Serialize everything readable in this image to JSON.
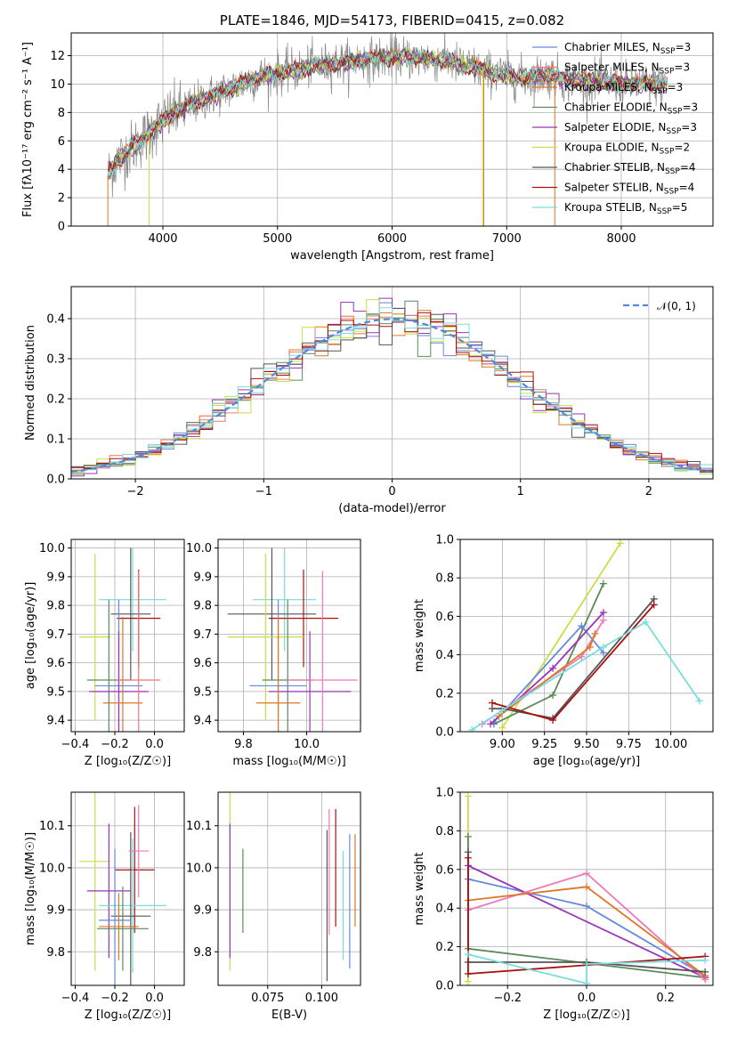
{
  "colors": {
    "chabrier_miles": "#6688dd",
    "salpeter_miles": "#ee7777",
    "kroupa_miles": "#dd7722",
    "chabrier_elodie": "#5a8a5a",
    "salpeter_elodie": "#9933bb",
    "kroupa_elodie": "#ccdd44",
    "chabrier_stelib": "#555555",
    "salpeter_stelib": "#aa1111",
    "kroupa_stelib": "#77dddd",
    "pink": "#ee77bb",
    "gauss": "#5588dd"
  },
  "chart_data": [
    {
      "id": "spectrum",
      "type": "line",
      "title": "PLATE=1846, MJD=54173, FIBERID=0415, z=0.082",
      "xlabel": "wavelength [Angstrom, rest frame]",
      "ylabel": "Flux [fλ10⁻¹⁷ erg cm⁻² s⁻¹ A⁻¹]",
      "xlim": [
        3200,
        8800
      ],
      "ylim": [
        0,
        13.6
      ],
      "xticks": [
        "4000",
        "5000",
        "6000",
        "7000",
        "8000"
      ],
      "yticks": [
        "0",
        "2",
        "4",
        "6",
        "8",
        "10",
        "12"
      ],
      "legend_position": "top-right",
      "legend": [
        {
          "label": "Chabrier MILES, N",
          "sub": "SSP",
          "tail": "=3",
          "color": "chabrier_miles"
        },
        {
          "label": "Salpeter MILES, N",
          "sub": "SSP",
          "tail": "=3",
          "color": "salpeter_miles"
        },
        {
          "label": "Kroupa MILES, N",
          "sub": "SSP",
          "tail": "=3",
          "color": "kroupa_miles"
        },
        {
          "label": "Chabrier ELODIE, N",
          "sub": "SSP",
          "tail": "=3",
          "color": "chabrier_elodie"
        },
        {
          "label": "Salpeter ELODIE, N",
          "sub": "SSP",
          "tail": "=3",
          "color": "salpeter_elodie"
        },
        {
          "label": "Kroupa ELODIE, N",
          "sub": "SSP",
          "tail": "=2",
          "color": "kroupa_elodie"
        },
        {
          "label": "Chabrier STELIB, N",
          "sub": "SSP",
          "tail": "=4",
          "color": "chabrier_stelib"
        },
        {
          "label": "Salpeter STELIB, N",
          "sub": "SSP",
          "tail": "=4",
          "color": "salpeter_stelib"
        },
        {
          "label": "Kroupa STELIB, N",
          "sub": "SSP",
          "tail": "=5",
          "color": "kroupa_stelib"
        }
      ],
      "continuum": [
        [
          3520,
          3.6
        ],
        [
          3600,
          4.6
        ],
        [
          3700,
          5.3
        ],
        [
          3800,
          6.0
        ],
        [
          3900,
          6.7
        ],
        [
          4000,
          7.4
        ],
        [
          4100,
          8.0
        ],
        [
          4200,
          8.3
        ],
        [
          4300,
          8.7
        ],
        [
          4400,
          9.1
        ],
        [
          4500,
          9.4
        ],
        [
          4600,
          9.7
        ],
        [
          4700,
          10.1
        ],
        [
          4800,
          10.4
        ],
        [
          4900,
          10.6
        ],
        [
          5000,
          10.8
        ],
        [
          5100,
          10.9
        ],
        [
          5200,
          11.0
        ],
        [
          5300,
          11.3
        ],
        [
          5400,
          11.3
        ],
        [
          5500,
          11.5
        ],
        [
          5600,
          11.5
        ],
        [
          5700,
          11.7
        ],
        [
          5800,
          11.7
        ],
        [
          5900,
          11.8
        ],
        [
          6000,
          11.9
        ],
        [
          6100,
          11.9
        ],
        [
          6200,
          11.8
        ],
        [
          6300,
          11.8
        ],
        [
          6400,
          11.7
        ],
        [
          6500,
          11.6
        ],
        [
          6600,
          11.3
        ],
        [
          6700,
          11.2
        ],
        [
          6800,
          10.9
        ],
        [
          6900,
          10.8
        ],
        [
          7000,
          10.6
        ],
        [
          7100,
          10.5
        ],
        [
          7200,
          10.4
        ],
        [
          7300,
          10.6
        ],
        [
          7400,
          10.6
        ],
        [
          7500,
          10.3
        ],
        [
          7700,
          10.2
        ],
        [
          7900,
          10.1
        ],
        [
          8100,
          10.0
        ],
        [
          8300,
          10.0
        ]
      ]
    },
    {
      "id": "residuals",
      "type": "line",
      "xlabel": "(data-model)/error",
      "ylabel": "Normed distribution",
      "xlim": [
        -2.5,
        2.5
      ],
      "ylim": [
        0,
        0.48
      ],
      "xticks": [
        "−2",
        "−1",
        "0",
        "1",
        "2"
      ],
      "yticks": [
        "0.0",
        "0.1",
        "0.2",
        "0.3",
        "0.4"
      ],
      "legend_position": "top-right",
      "legend_label": "𝒩(0, 1)",
      "bin_width": 0.1
    },
    {
      "id": "age_vs_Z",
      "type": "scatter",
      "xlabel": "Z [log₁₀(Z/Z☉)]",
      "ylabel": "age  [log₁₀(age/yr)]",
      "xlim": [
        -0.42,
        0.15
      ],
      "ylim": [
        9.36,
        10.03
      ],
      "xticks": [
        "−0.4",
        "−0.2",
        "0.0"
      ],
      "yticks": [
        "9.4",
        "9.5",
        "9.6",
        "9.7",
        "9.8",
        "9.9",
        "10.0"
      ],
      "points": [
        {
          "x": -0.11,
          "y": 9.82,
          "xerr": 0.17,
          "yerr": 0.18,
          "color": "kroupa_stelib"
        },
        {
          "x": -0.12,
          "y": 9.77,
          "xerr": 0.1,
          "yerr": 0.23,
          "color": "chabrier_stelib"
        },
        {
          "x": -0.08,
          "y": 9.755,
          "xerr": 0.11,
          "yerr": 0.17,
          "color": "salpeter_stelib"
        },
        {
          "x": -0.3,
          "y": 9.69,
          "xerr": 0.08,
          "yerr": 0.29,
          "color": "kroupa_elodie"
        },
        {
          "x": -0.23,
          "y": 9.54,
          "xerr": 0.11,
          "yerr": 0.28,
          "color": "chabrier_elodie"
        },
        {
          "x": -0.18,
          "y": 9.52,
          "xerr": 0.12,
          "yerr": 0.3,
          "color": "chabrier_miles"
        },
        {
          "x": -0.18,
          "y": 9.5,
          "xerr": 0.15,
          "yerr": 0.21,
          "color": "salpeter_elodie"
        },
        {
          "x": -0.16,
          "y": 9.46,
          "xerr": 0.1,
          "yerr": 0.3,
          "color": "kroupa_miles"
        },
        {
          "x": -0.08,
          "y": 9.54,
          "xerr": 0.11,
          "yerr": 0.38,
          "color": "salpeter_miles"
        }
      ]
    },
    {
      "id": "age_vs_mass",
      "type": "scatter",
      "xlabel": "mass [log₁₀(M/M☉)]",
      "ylabel": "",
      "xlim": [
        9.72,
        10.17
      ],
      "ylim": [
        9.36,
        10.03
      ],
      "xticks": [
        "9.8",
        "10.0"
      ],
      "yticks": [
        "9.4",
        "9.5",
        "9.6",
        "9.7",
        "9.8",
        "9.9",
        "10.0"
      ],
      "points": [
        {
          "x": 9.93,
          "y": 9.82,
          "xerr": 0.1,
          "yerr": 0.18,
          "color": "kroupa_stelib"
        },
        {
          "x": 9.89,
          "y": 9.77,
          "xerr": 0.14,
          "yerr": 0.23,
          "color": "chabrier_stelib"
        },
        {
          "x": 9.99,
          "y": 9.755,
          "xerr": 0.11,
          "yerr": 0.17,
          "color": "salpeter_stelib"
        },
        {
          "x": 9.87,
          "y": 9.69,
          "xerr": 0.12,
          "yerr": 0.29,
          "color": "kroupa_elodie"
        },
        {
          "x": 9.94,
          "y": 9.54,
          "xerr": 0.08,
          "yerr": 0.28,
          "color": "chabrier_elodie"
        },
        {
          "x": 9.91,
          "y": 9.52,
          "xerr": 0.09,
          "yerr": 0.3,
          "color": "chabrier_miles"
        },
        {
          "x": 10.01,
          "y": 9.5,
          "xerr": 0.13,
          "yerr": 0.21,
          "color": "salpeter_elodie"
        },
        {
          "x": 9.91,
          "y": 9.46,
          "xerr": 0.07,
          "yerr": 0.3,
          "color": "kroupa_miles"
        },
        {
          "x": 10.05,
          "y": 9.54,
          "xerr": 0.11,
          "yerr": 0.38,
          "color": "pink"
        }
      ]
    },
    {
      "id": "massweight_vs_age",
      "type": "line",
      "xlabel": "age  [log₁₀(age/yr)]",
      "ylabel": "mass weight",
      "xlim": [
        8.75,
        10.25
      ],
      "ylim": [
        0,
        1.0
      ],
      "xticks": [
        "9.00",
        "9.25",
        "9.50",
        "9.75",
        "10.00"
      ],
      "yticks": [
        "0.0",
        "0.2",
        "0.4",
        "0.6",
        "0.8",
        "1.0"
      ],
      "series": [
        {
          "color": "kroupa_elodie",
          "points": [
            [
              9.0,
              0.02
            ],
            [
              9.7,
              0.98
            ]
          ]
        },
        {
          "color": "chabrier_elodie",
          "points": [
            [
              8.95,
              0.04
            ],
            [
              9.3,
              0.19
            ],
            [
              9.6,
              0.77
            ]
          ]
        },
        {
          "color": "chabrier_miles",
          "points": [
            [
              8.95,
              0.05
            ],
            [
              9.47,
              0.55
            ],
            [
              9.6,
              0.41
            ]
          ]
        },
        {
          "color": "salpeter_elodie",
          "points": [
            [
              8.93,
              0.04
            ],
            [
              9.3,
              0.33
            ],
            [
              9.6,
              0.62
            ]
          ]
        },
        {
          "color": "pink",
          "points": [
            [
              8.88,
              0.04
            ],
            [
              9.47,
              0.39
            ],
            [
              9.6,
              0.58
            ]
          ]
        },
        {
          "color": "kroupa_miles",
          "points": [
            [
              8.98,
              0.08
            ],
            [
              9.52,
              0.44
            ],
            [
              9.55,
              0.51
            ]
          ]
        },
        {
          "color": "chabrier_stelib",
          "points": [
            [
              8.94,
              0.12
            ],
            [
              9.0,
              0.12
            ],
            [
              9.3,
              0.07
            ],
            [
              9.9,
              0.69
            ]
          ]
        },
        {
          "color": "salpeter_stelib",
          "points": [
            [
              8.94,
              0.15
            ],
            [
              9.3,
              0.06
            ],
            [
              9.9,
              0.66
            ]
          ]
        },
        {
          "color": "kroupa_stelib",
          "points": [
            [
              8.82,
              0.01
            ],
            [
              9.0,
              0.11
            ],
            [
              9.6,
              0.44
            ],
            [
              9.85,
              0.57
            ],
            [
              10.17,
              0.16
            ]
          ]
        }
      ]
    },
    {
      "id": "mass_vs_Z",
      "type": "scatter",
      "xlabel": "Z [log₁₀(Z/Z☉)]",
      "ylabel": "mass [log₁₀(M/M☉)]",
      "xlim": [
        -0.42,
        0.15
      ],
      "ylim": [
        9.72,
        10.18
      ],
      "xticks": [
        "−0.4",
        "−0.2",
        "0.0"
      ],
      "yticks": [
        "9.8",
        "9.9",
        "10.0",
        "10.1"
      ],
      "points": [
        {
          "x": -0.3,
          "y": 10.015,
          "xerr": 0.08,
          "yerr": 0.26,
          "color": "kroupa_elodie"
        },
        {
          "x": -0.23,
          "y": 9.945,
          "xerr": 0.11,
          "yerr": 0.16,
          "color": "salpeter_elodie"
        },
        {
          "x": -0.1,
          "y": 9.995,
          "xerr": 0.1,
          "yerr": 0.15,
          "color": "salpeter_stelib"
        },
        {
          "x": -0.11,
          "y": 9.91,
          "xerr": 0.17,
          "yerr": 0.16,
          "color": "kroupa_stelib"
        },
        {
          "x": -0.12,
          "y": 9.885,
          "xerr": 0.1,
          "yerr": 0.2,
          "color": "chabrier_stelib"
        },
        {
          "x": -0.2,
          "y": 9.875,
          "xerr": 0.08,
          "yerr": 0.17,
          "color": "chabrier_miles"
        },
        {
          "x": -0.08,
          "y": 10.04,
          "xerr": 0.05,
          "yerr": 0.11,
          "color": "pink"
        },
        {
          "x": -0.18,
          "y": 9.86,
          "xerr": 0.1,
          "yerr": 0.08,
          "color": "kroupa_miles"
        },
        {
          "x": -0.16,
          "y": 9.855,
          "xerr": 0.13,
          "yerr": 0.1,
          "color": "chabrier_elodie"
        }
      ]
    },
    {
      "id": "mass_vs_ebv",
      "type": "scatter",
      "xlabel": "E(B-V)",
      "ylabel": "",
      "xlim": [
        0.052,
        0.118
      ],
      "ylim": [
        9.72,
        10.18
      ],
      "xticks": [
        "0.075",
        "0.100"
      ],
      "yticks": [
        "9.8",
        "9.9",
        "10.0",
        "10.1"
      ],
      "points": [
        {
          "x": 0.0575,
          "y": 10.015,
          "yerr": 0.26,
          "color": "kroupa_elodie"
        },
        {
          "x": 0.0575,
          "y": 9.945,
          "yerr": 0.16,
          "color": "salpeter_elodie"
        },
        {
          "x": 0.0635,
          "y": 9.945,
          "yerr": 0.1,
          "color": "chabrier_elodie"
        },
        {
          "x": 0.1025,
          "y": 9.91,
          "yerr": 0.18,
          "color": "chabrier_stelib"
        },
        {
          "x": 0.1035,
          "y": 9.99,
          "yerr": 0.15,
          "color": "pink"
        },
        {
          "x": 0.1065,
          "y": 10.0,
          "yerr": 0.14,
          "color": "salpeter_stelib"
        },
        {
          "x": 0.11,
          "y": 9.91,
          "yerr": 0.13,
          "color": "kroupa_stelib"
        },
        {
          "x": 0.113,
          "y": 9.92,
          "yerr": 0.16,
          "color": "chabrier_miles"
        },
        {
          "x": 0.1155,
          "y": 9.97,
          "yerr": 0.11,
          "color": "kroupa_miles"
        }
      ]
    },
    {
      "id": "massweight_vs_Z",
      "type": "line",
      "xlabel": "Z [log₁₀(Z/Z☉)]",
      "ylabel": "mass weight",
      "xlim": [
        -0.32,
        0.32
      ],
      "ylim": [
        0,
        1.0
      ],
      "xticks": [
        "−0.2",
        "0.0",
        "0.2"
      ],
      "yticks": [
        "0.0",
        "0.2",
        "0.4",
        "0.6",
        "0.8",
        "1.0"
      ],
      "series": [
        {
          "color": "kroupa_elodie",
          "points": [
            [
              -0.3,
              0.98
            ],
            [
              -0.3,
              0.02
            ]
          ]
        },
        {
          "color": "chabrier_elodie",
          "points": [
            [
              -0.3,
              0.77
            ],
            [
              -0.3,
              0.19
            ],
            [
              0.3,
              0.04
            ]
          ]
        },
        {
          "color": "chabrier_miles",
          "points": [
            [
              -0.3,
              0.55
            ],
            [
              0.0,
              0.41
            ],
            [
              0.3,
              0.05
            ]
          ]
        },
        {
          "color": "salpeter_elodie",
          "points": [
            [
              -0.3,
              0.62
            ],
            [
              0.3,
              0.04
            ]
          ]
        },
        {
          "color": "pink",
          "points": [
            [
              -0.3,
              0.39
            ],
            [
              0.0,
              0.58
            ],
            [
              0.3,
              0.03
            ]
          ]
        },
        {
          "color": "kroupa_miles",
          "points": [
            [
              -0.3,
              0.44
            ],
            [
              0.0,
              0.51
            ],
            [
              0.3,
              0.05
            ]
          ]
        },
        {
          "color": "chabrier_stelib",
          "points": [
            [
              -0.3,
              0.69
            ],
            [
              -0.3,
              0.12
            ],
            [
              0.0,
              0.12
            ],
            [
              0.3,
              0.07
            ]
          ]
        },
        {
          "color": "salpeter_stelib",
          "points": [
            [
              -0.3,
              0.66
            ],
            [
              -0.3,
              0.06
            ],
            [
              0.3,
              0.15
            ]
          ]
        },
        {
          "color": "kroupa_stelib",
          "points": [
            [
              -0.3,
              0.16
            ],
            [
              0.0,
              0.01
            ],
            [
              0.0,
              0.11
            ],
            [
              0.3,
              0.13
            ]
          ]
        }
      ]
    }
  ]
}
